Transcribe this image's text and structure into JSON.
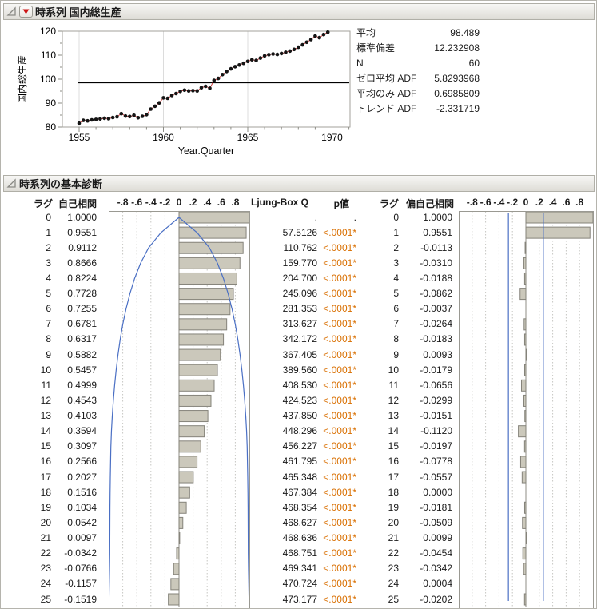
{
  "section1": {
    "title": "時系列 国内総生産",
    "stats": [
      {
        "label": "平均",
        "value": "98.489"
      },
      {
        "label": "標準偏差",
        "value": "12.232908"
      },
      {
        "label": "N",
        "value": "60"
      },
      {
        "label": "ゼロ平均 ADF",
        "value": "5.8293968"
      },
      {
        "label": "平均のみ ADF",
        "value": "0.6985809"
      },
      {
        "label": "トレンド ADF",
        "value": "-2.331719"
      }
    ]
  },
  "chart_data": {
    "type": "line",
    "title": "時系列 国内総生産",
    "xlabel": "Year.Quarter",
    "ylabel": "国内総生産",
    "xlim": [
      1954,
      1971.05
    ],
    "ylim": [
      80,
      120
    ],
    "x_ticks": [
      1955,
      1960,
      1965,
      1970
    ],
    "y_ticks": [
      80,
      90,
      100,
      110,
      120
    ],
    "x_start": 1955,
    "x_step": 0.25,
    "mean_line": 98.489,
    "grid": "vertical-major",
    "values": [
      81.6,
      82.8,
      82.6,
      83.0,
      83.2,
      83.4,
      83.7,
      83.5,
      84.0,
      84.3,
      85.6,
      84.6,
      84.4,
      84.9,
      83.9,
      84.5,
      85.2,
      87.5,
      88.7,
      90.1,
      92.2,
      92.0,
      93.2,
      94.0,
      94.9,
      95.4,
      95.1,
      95.2,
      95.1,
      96.4,
      97.0,
      96.2,
      99.5,
      100.3,
      101.9,
      103.2,
      104.3,
      105.2,
      105.9,
      106.6,
      107.4,
      108.1,
      107.8,
      108.8,
      109.7,
      110.2,
      110.5,
      110.3,
      110.7,
      111.2,
      111.7,
      112.4,
      113.3,
      114.3,
      115.4,
      116.5,
      118.0,
      117.3,
      118.6,
      119.6
    ]
  },
  "section2": {
    "title": "時系列の基本診断",
    "col_lag1": "ラグ",
    "col_acf": "自己相関",
    "col_q": "Ljung-Box Q",
    "col_p": "p値",
    "col_lag2": "ラグ",
    "col_pacf": "偏自己相関",
    "scale_labels": [
      "-.8",
      "-.6",
      "-.4",
      "-.2",
      "0",
      ".2",
      ".4",
      ".6",
      ".8"
    ],
    "acf_conf_bounds": [
      0,
      0.258,
      0.434,
      0.547,
      0.632,
      0.699,
      0.754,
      0.8,
      0.837,
      0.868,
      0.894,
      0.916,
      0.934,
      0.949,
      0.961,
      0.969,
      0.973,
      0.977,
      0.98,
      0.982,
      0.983,
      0.984,
      0.985,
      0.988,
      0.992,
      0.996
    ],
    "pacf_conf_bound": 0.26,
    "rows": [
      {
        "lag": "0",
        "acf": "1.0000",
        "q": ".",
        "p": ".",
        "pacf": "1.0000"
      },
      {
        "lag": "1",
        "acf": "0.9551",
        "q": "57.5126",
        "p": "<.0001*",
        "pacf": "0.9551"
      },
      {
        "lag": "2",
        "acf": "0.9112",
        "q": "110.762",
        "p": "<.0001*",
        "pacf": "-0.0113"
      },
      {
        "lag": "3",
        "acf": "0.8666",
        "q": "159.770",
        "p": "<.0001*",
        "pacf": "-0.0310"
      },
      {
        "lag": "4",
        "acf": "0.8224",
        "q": "204.700",
        "p": "<.0001*",
        "pacf": "-0.0188"
      },
      {
        "lag": "5",
        "acf": "0.7728",
        "q": "245.096",
        "p": "<.0001*",
        "pacf": "-0.0862"
      },
      {
        "lag": "6",
        "acf": "0.7255",
        "q": "281.353",
        "p": "<.0001*",
        "pacf": "-0.0037"
      },
      {
        "lag": "7",
        "acf": "0.6781",
        "q": "313.627",
        "p": "<.0001*",
        "pacf": "-0.0264"
      },
      {
        "lag": "8",
        "acf": "0.6317",
        "q": "342.172",
        "p": "<.0001*",
        "pacf": "-0.0183"
      },
      {
        "lag": "9",
        "acf": "0.5882",
        "q": "367.405",
        "p": "<.0001*",
        "pacf": "0.0093"
      },
      {
        "lag": "10",
        "acf": "0.5457",
        "q": "389.560",
        "p": "<.0001*",
        "pacf": "-0.0179"
      },
      {
        "lag": "11",
        "acf": "0.4999",
        "q": "408.530",
        "p": "<.0001*",
        "pacf": "-0.0656"
      },
      {
        "lag": "12",
        "acf": "0.4543",
        "q": "424.523",
        "p": "<.0001*",
        "pacf": "-0.0299"
      },
      {
        "lag": "13",
        "acf": "0.4103",
        "q": "437.850",
        "p": "<.0001*",
        "pacf": "-0.0151"
      },
      {
        "lag": "14",
        "acf": "0.3594",
        "q": "448.296",
        "p": "<.0001*",
        "pacf": "-0.1120"
      },
      {
        "lag": "15",
        "acf": "0.3097",
        "q": "456.227",
        "p": "<.0001*",
        "pacf": "-0.0197"
      },
      {
        "lag": "16",
        "acf": "0.2566",
        "q": "461.795",
        "p": "<.0001*",
        "pacf": "-0.0778"
      },
      {
        "lag": "17",
        "acf": "0.2027",
        "q": "465.348",
        "p": "<.0001*",
        "pacf": "-0.0557"
      },
      {
        "lag": "18",
        "acf": "0.1516",
        "q": "467.384",
        "p": "<.0001*",
        "pacf": "0.0000"
      },
      {
        "lag": "19",
        "acf": "0.1034",
        "q": "468.354",
        "p": "<.0001*",
        "pacf": "-0.0181"
      },
      {
        "lag": "20",
        "acf": "0.0542",
        "q": "468.627",
        "p": "<.0001*",
        "pacf": "-0.0509"
      },
      {
        "lag": "21",
        "acf": "0.0097",
        "q": "468.636",
        "p": "<.0001*",
        "pacf": "0.0099"
      },
      {
        "lag": "22",
        "acf": "-0.0342",
        "q": "468.751",
        "p": "<.0001*",
        "pacf": "-0.0454"
      },
      {
        "lag": "23",
        "acf": "-0.0766",
        "q": "469.341",
        "p": "<.0001*",
        "pacf": "-0.0342"
      },
      {
        "lag": "24",
        "acf": "-0.1157",
        "q": "470.724",
        "p": "<.0001*",
        "pacf": "0.0004"
      },
      {
        "lag": "25",
        "acf": "-0.1519",
        "q": "473.177",
        "p": "<.0001*",
        "pacf": "-0.0202"
      }
    ]
  },
  "colors": {
    "bar_fill": "#cbc8bb",
    "bar_border": "#85837a",
    "conf_blue": "#4a6fc4",
    "p_orange": "#d96f00",
    "series_line_red": "#cc3333",
    "point_black": "#141414",
    "grid_gray": "#dcdcdc",
    "dotted_gray": "#c6c6c2"
  }
}
